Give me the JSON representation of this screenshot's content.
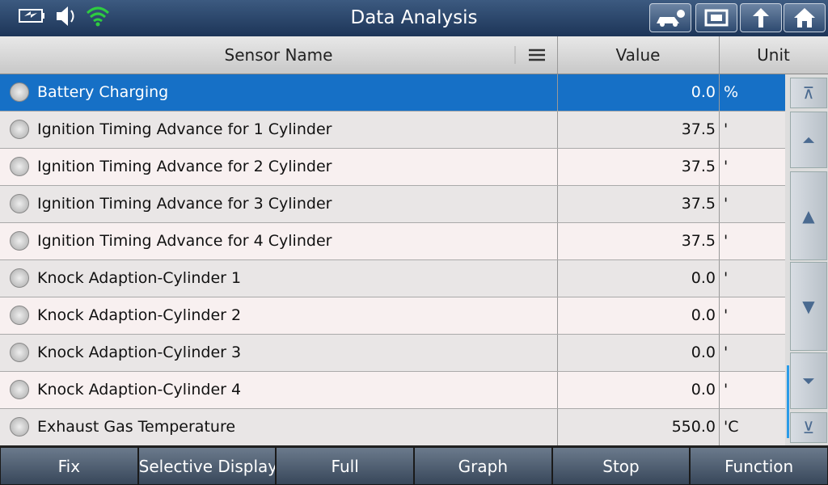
{
  "header": {
    "title": "Data Analysis"
  },
  "table": {
    "columns": [
      "Sensor Name",
      "Value",
      "Unit"
    ],
    "rows": [
      [
        "Battery Charging",
        "0.0",
        "%"
      ],
      [
        "Ignition Timing Advance for 1 Cylinder",
        "37.5",
        "'"
      ],
      [
        "Ignition Timing Advance for 2 Cylinder",
        "37.5",
        "'"
      ],
      [
        "Ignition Timing Advance for 3 Cylinder",
        "37.5",
        "'"
      ],
      [
        "Ignition Timing Advance for 4 Cylinder",
        "37.5",
        "'"
      ],
      [
        "Knock Adaption-Cylinder 1",
        "0.0",
        "'"
      ],
      [
        "Knock Adaption-Cylinder 2",
        "0.0",
        "'"
      ],
      [
        "Knock Adaption-Cylinder 3",
        "0.0",
        "'"
      ],
      [
        "Knock Adaption-Cylinder 4",
        "0.0",
        "'"
      ],
      [
        "Exhaust Gas Temperature",
        "550.0",
        "'C"
      ]
    ]
  },
  "footer": {
    "buttons": [
      "Fix",
      "Selective Display",
      "Full",
      "Graph",
      "Stop",
      "Function"
    ]
  }
}
